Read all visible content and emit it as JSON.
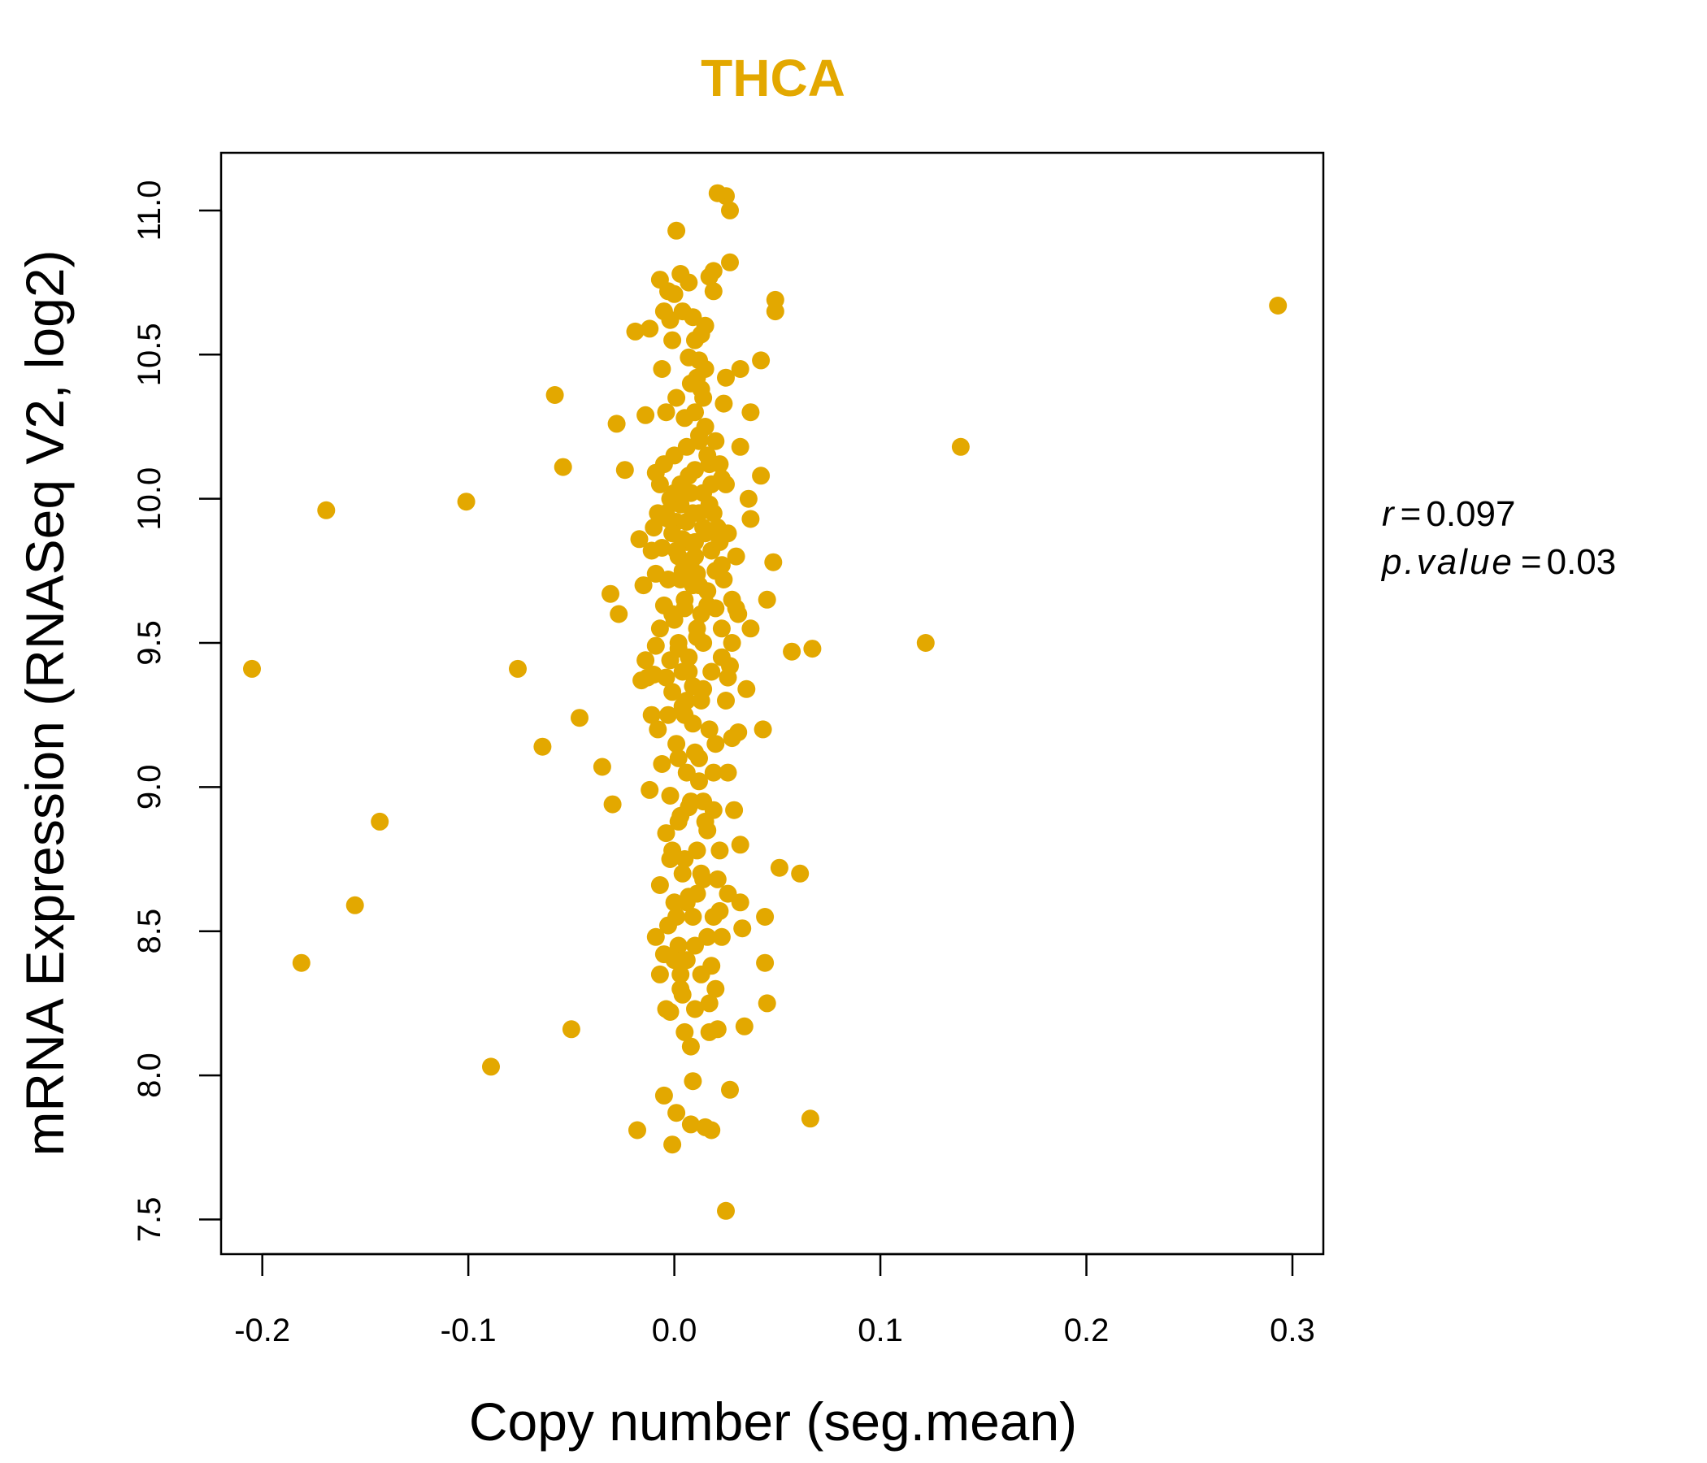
{
  "colors": {
    "accent": "#E3A800",
    "axis": "#000000"
  },
  "chart_data": {
    "type": "scatter",
    "title": "THCA",
    "xlabel": "Copy number (seg.mean)",
    "ylabel": "mRNA Expression (RNASeq V2, log2)",
    "xlim": [
      -0.22,
      0.315
    ],
    "ylim": [
      7.38,
      11.2
    ],
    "xticks": [
      -0.2,
      -0.1,
      0.0,
      0.1,
      0.2,
      0.3
    ],
    "xtick_labels": [
      "-0.2",
      "-0.1",
      "0.0",
      "0.1",
      "0.2",
      "0.3"
    ],
    "yticks": [
      7.5,
      8.0,
      8.5,
      9.0,
      9.5,
      10.0,
      10.5,
      11.0
    ],
    "ytick_labels": [
      "7.5",
      "8.0",
      "8.5",
      "9.0",
      "9.5",
      "10.0",
      "10.5",
      "11.0"
    ],
    "grid": false,
    "stats": {
      "r_label": "r",
      "r_value": "0.097",
      "p_label": "p.value",
      "p_value": "0.03"
    },
    "points": [
      [
        0.293,
        10.67
      ],
      [
        0.139,
        10.18
      ],
      [
        0.122,
        9.5
      ],
      [
        0.067,
        9.48
      ],
      [
        0.057,
        9.47
      ],
      [
        0.066,
        7.85
      ],
      [
        0.061,
        8.7
      ],
      [
        0.051,
        8.72
      ],
      [
        0.049,
        10.69
      ],
      [
        0.049,
        10.65
      ],
      [
        0.048,
        9.78
      ],
      [
        0.045,
        9.65
      ],
      [
        0.045,
        8.25
      ],
      [
        0.044,
        8.39
      ],
      [
        0.044,
        8.55
      ],
      [
        0.043,
        9.2
      ],
      [
        0.042,
        10.48
      ],
      [
        0.042,
        10.08
      ],
      [
        0.037,
        10.3
      ],
      [
        0.037,
        9.93
      ],
      [
        0.037,
        9.55
      ],
      [
        0.036,
        10.0
      ],
      [
        0.035,
        9.34
      ],
      [
        0.034,
        8.17
      ],
      [
        0.033,
        8.51
      ],
      [
        0.032,
        8.6
      ],
      [
        0.032,
        8.8
      ],
      [
        0.032,
        10.45
      ],
      [
        0.032,
        10.18
      ],
      [
        0.031,
        9.6
      ],
      [
        0.031,
        9.19
      ],
      [
        0.03,
        9.62
      ],
      [
        0.029,
        8.92
      ],
      [
        0.028,
        9.5
      ],
      [
        0.028,
        9.17
      ],
      [
        0.027,
        11.0
      ],
      [
        0.027,
        10.82
      ],
      [
        0.027,
        7.95
      ],
      [
        0.026,
        9.38
      ],
      [
        0.026,
        8.63
      ],
      [
        0.025,
        11.05
      ],
      [
        0.025,
        7.53
      ],
      [
        0.025,
        10.42
      ],
      [
        0.024,
        10.33
      ],
      [
        0.023,
        10.07
      ],
      [
        0.023,
        9.77
      ],
      [
        0.023,
        9.45
      ],
      [
        0.022,
        8.78
      ],
      [
        0.022,
        8.57
      ],
      [
        0.021,
        11.06
      ],
      [
        0.021,
        8.16
      ],
      [
        0.02,
        9.15
      ],
      [
        0.02,
        8.3
      ],
      [
        0.019,
        10.72
      ],
      [
        0.019,
        10.79
      ],
      [
        0.019,
        9.05
      ],
      [
        0.018,
        8.38
      ],
      [
        0.018,
        7.81
      ],
      [
        0.017,
        10.77
      ],
      [
        0.017,
        8.15
      ],
      [
        0.016,
        9.63
      ],
      [
        0.016,
        8.48
      ],
      [
        0.015,
        10.6
      ],
      [
        0.015,
        8.88
      ],
      [
        0.015,
        7.82
      ],
      [
        0.014,
        10.35
      ],
      [
        0.014,
        9.9
      ],
      [
        0.014,
        9.34
      ],
      [
        0.014,
        8.95
      ],
      [
        0.013,
        10.57
      ],
      [
        0.013,
        8.7
      ],
      [
        0.012,
        10.2
      ],
      [
        0.012,
        9.7
      ],
      [
        0.012,
        9.1
      ],
      [
        0.011,
        10.42
      ],
      [
        0.011,
        9.52
      ],
      [
        0.011,
        8.63
      ],
      [
        0.01,
        10.1
      ],
      [
        0.01,
        9.8
      ],
      [
        0.01,
        8.23
      ],
      [
        0.009,
        10.63
      ],
      [
        0.009,
        9.95
      ],
      [
        0.009,
        9.22
      ],
      [
        0.009,
        8.55
      ],
      [
        0.009,
        7.98
      ],
      [
        0.008,
        10.02
      ],
      [
        0.008,
        8.1
      ],
      [
        0.008,
        7.83
      ],
      [
        0.007,
        10.75
      ],
      [
        0.007,
        10.49
      ],
      [
        0.007,
        9.4
      ],
      [
        0.007,
        8.93
      ],
      [
        0.006,
        9.85
      ],
      [
        0.006,
        9.05
      ],
      [
        0.006,
        8.4
      ],
      [
        0.005,
        10.28
      ],
      [
        0.005,
        9.62
      ],
      [
        0.005,
        8.15
      ],
      [
        0.004,
        10.65
      ],
      [
        0.004,
        9.75
      ],
      [
        0.004,
        9.28
      ],
      [
        0.004,
        8.7
      ],
      [
        0.003,
        10.78
      ],
      [
        0.003,
        10.05
      ],
      [
        0.003,
        8.3
      ],
      [
        0.002,
        9.48
      ],
      [
        0.002,
        8.88
      ],
      [
        0.002,
        8.45
      ],
      [
        0.001,
        10.93
      ],
      [
        0.001,
        10.35
      ],
      [
        0.001,
        9.92
      ],
      [
        0.001,
        9.15
      ],
      [
        0.001,
        7.87
      ],
      [
        0.0,
        10.71
      ],
      [
        0.0,
        10.15
      ],
      [
        0.0,
        9.58
      ],
      [
        0.0,
        8.6
      ],
      [
        -0.001,
        10.55
      ],
      [
        -0.001,
        9.88
      ],
      [
        -0.001,
        9.33
      ],
      [
        -0.001,
        8.78
      ],
      [
        -0.001,
        7.76
      ],
      [
        -0.002,
        10.62
      ],
      [
        -0.002,
        10.0
      ],
      [
        -0.002,
        9.44
      ],
      [
        -0.002,
        8.97
      ],
      [
        -0.002,
        8.22
      ],
      [
        -0.003,
        10.72
      ],
      [
        -0.003,
        9.72
      ],
      [
        -0.003,
        9.25
      ],
      [
        -0.003,
        8.52
      ],
      [
        -0.004,
        10.3
      ],
      [
        -0.004,
        9.95
      ],
      [
        -0.004,
        9.38
      ],
      [
        -0.004,
        8.84
      ],
      [
        -0.004,
        8.23
      ],
      [
        -0.005,
        10.65
      ],
      [
        -0.005,
        10.12
      ],
      [
        -0.005,
        9.63
      ],
      [
        -0.005,
        8.42
      ],
      [
        -0.005,
        7.93
      ],
      [
        -0.006,
        10.45
      ],
      [
        -0.006,
        9.83
      ],
      [
        -0.006,
        9.08
      ],
      [
        -0.007,
        10.76
      ],
      [
        -0.007,
        10.05
      ],
      [
        -0.007,
        9.55
      ],
      [
        -0.007,
        8.66
      ],
      [
        -0.007,
        8.35
      ],
      [
        -0.008,
        9.95
      ],
      [
        -0.008,
        9.2
      ],
      [
        -0.009,
        10.09
      ],
      [
        -0.009,
        9.74
      ],
      [
        -0.009,
        9.49
      ],
      [
        -0.009,
        8.48
      ],
      [
        -0.01,
        9.9
      ],
      [
        -0.01,
        9.39
      ],
      [
        -0.011,
        9.25
      ],
      [
        -0.011,
        9.82
      ],
      [
        -0.012,
        8.99
      ],
      [
        -0.012,
        10.59
      ],
      [
        -0.013,
        9.38
      ],
      [
        -0.014,
        9.44
      ],
      [
        -0.014,
        10.29
      ],
      [
        -0.015,
        9.7
      ],
      [
        -0.016,
        9.37
      ],
      [
        -0.017,
        9.86
      ],
      [
        -0.018,
        7.81
      ],
      [
        -0.019,
        10.58
      ],
      [
        -0.024,
        10.1
      ],
      [
        -0.027,
        9.6
      ],
      [
        -0.028,
        10.26
      ],
      [
        -0.03,
        8.94
      ],
      [
        -0.031,
        9.67
      ],
      [
        -0.035,
        9.07
      ],
      [
        -0.046,
        9.24
      ],
      [
        -0.05,
        8.16
      ],
      [
        -0.054,
        10.11
      ],
      [
        -0.058,
        10.36
      ],
      [
        -0.064,
        9.14
      ],
      [
        -0.076,
        9.41
      ],
      [
        -0.089,
        8.03
      ],
      [
        -0.101,
        9.99
      ],
      [
        -0.143,
        8.88
      ],
      [
        -0.155,
        8.59
      ],
      [
        -0.169,
        9.96
      ],
      [
        -0.181,
        8.39
      ],
      [
        -0.205,
        9.41
      ],
      [
        0.01,
        9.85
      ],
      [
        0.012,
        9.95
      ],
      [
        0.008,
        9.78
      ],
      [
        0.015,
        9.88
      ],
      [
        0.006,
        9.92
      ],
      [
        0.018,
        9.82
      ],
      [
        0.004,
        9.86
      ],
      [
        0.011,
        9.74
      ],
      [
        0.014,
        10.02
      ],
      [
        0.009,
        9.7
      ],
      [
        0.016,
        9.68
      ],
      [
        0.007,
        10.08
      ],
      [
        0.013,
        9.6
      ],
      [
        0.005,
        9.65
      ],
      [
        0.019,
        9.95
      ],
      [
        0.003,
        9.98
      ],
      [
        0.02,
        9.75
      ],
      [
        0.002,
        9.8
      ],
      [
        0.021,
        9.9
      ],
      [
        0.017,
        10.12
      ],
      [
        0.006,
        10.18
      ],
      [
        0.012,
        10.22
      ],
      [
        0.01,
        10.3
      ],
      [
        0.015,
        10.25
      ],
      [
        0.013,
        10.38
      ],
      [
        0.008,
        10.4
      ],
      [
        0.016,
        10.15
      ],
      [
        0.011,
        9.55
      ],
      [
        0.014,
        9.5
      ],
      [
        0.007,
        9.45
      ],
      [
        0.018,
        9.4
      ],
      [
        0.009,
        9.35
      ],
      [
        0.013,
        9.3
      ],
      [
        0.005,
        9.25
      ],
      [
        0.017,
        9.2
      ],
      [
        0.01,
        9.12
      ],
      [
        0.012,
        9.02
      ],
      [
        0.008,
        8.95
      ],
      [
        0.016,
        8.85
      ],
      [
        0.011,
        8.78
      ],
      [
        0.014,
        8.68
      ],
      [
        0.006,
        8.6
      ],
      [
        0.019,
        8.55
      ],
      [
        0.01,
        8.45
      ],
      [
        0.013,
        8.35
      ],
      [
        0.004,
        8.28
      ],
      [
        0.017,
        9.98
      ],
      [
        0.022,
        9.85
      ],
      [
        0.024,
        9.72
      ],
      [
        0.026,
        9.88
      ],
      [
        0.028,
        9.65
      ],
      [
        0.03,
        9.8
      ],
      [
        0.025,
        10.05
      ],
      [
        0.023,
        9.55
      ],
      [
        0.027,
        9.42
      ],
      [
        0.02,
        10.2
      ],
      [
        0.003,
        9.72
      ],
      [
        -0.001,
        9.6
      ],
      [
        0.001,
        9.82
      ],
      [
        0.0,
        10.02
      ],
      [
        -0.003,
        9.93
      ],
      [
        0.002,
        9.5
      ],
      [
        0.004,
        9.4
      ],
      [
        0.006,
        9.3
      ],
      [
        0.002,
        9.1
      ],
      [
        0.003,
        8.9
      ],
      [
        0.005,
        8.75
      ],
      [
        0.007,
        8.62
      ],
      [
        0.001,
        8.55
      ],
      [
        0.0,
        8.4
      ],
      [
        0.003,
        8.35
      ],
      [
        -0.002,
        8.75
      ],
      [
        0.012,
        10.48
      ],
      [
        0.015,
        10.45
      ],
      [
        0.01,
        10.55
      ],
      [
        0.018,
        10.05
      ],
      [
        0.02,
        9.62
      ],
      [
        0.022,
        10.12
      ],
      [
        0.025,
        9.3
      ],
      [
        0.026,
        9.05
      ],
      [
        0.019,
        8.92
      ],
      [
        0.021,
        8.68
      ],
      [
        0.023,
        8.48
      ],
      [
        0.017,
        8.25
      ]
    ]
  }
}
